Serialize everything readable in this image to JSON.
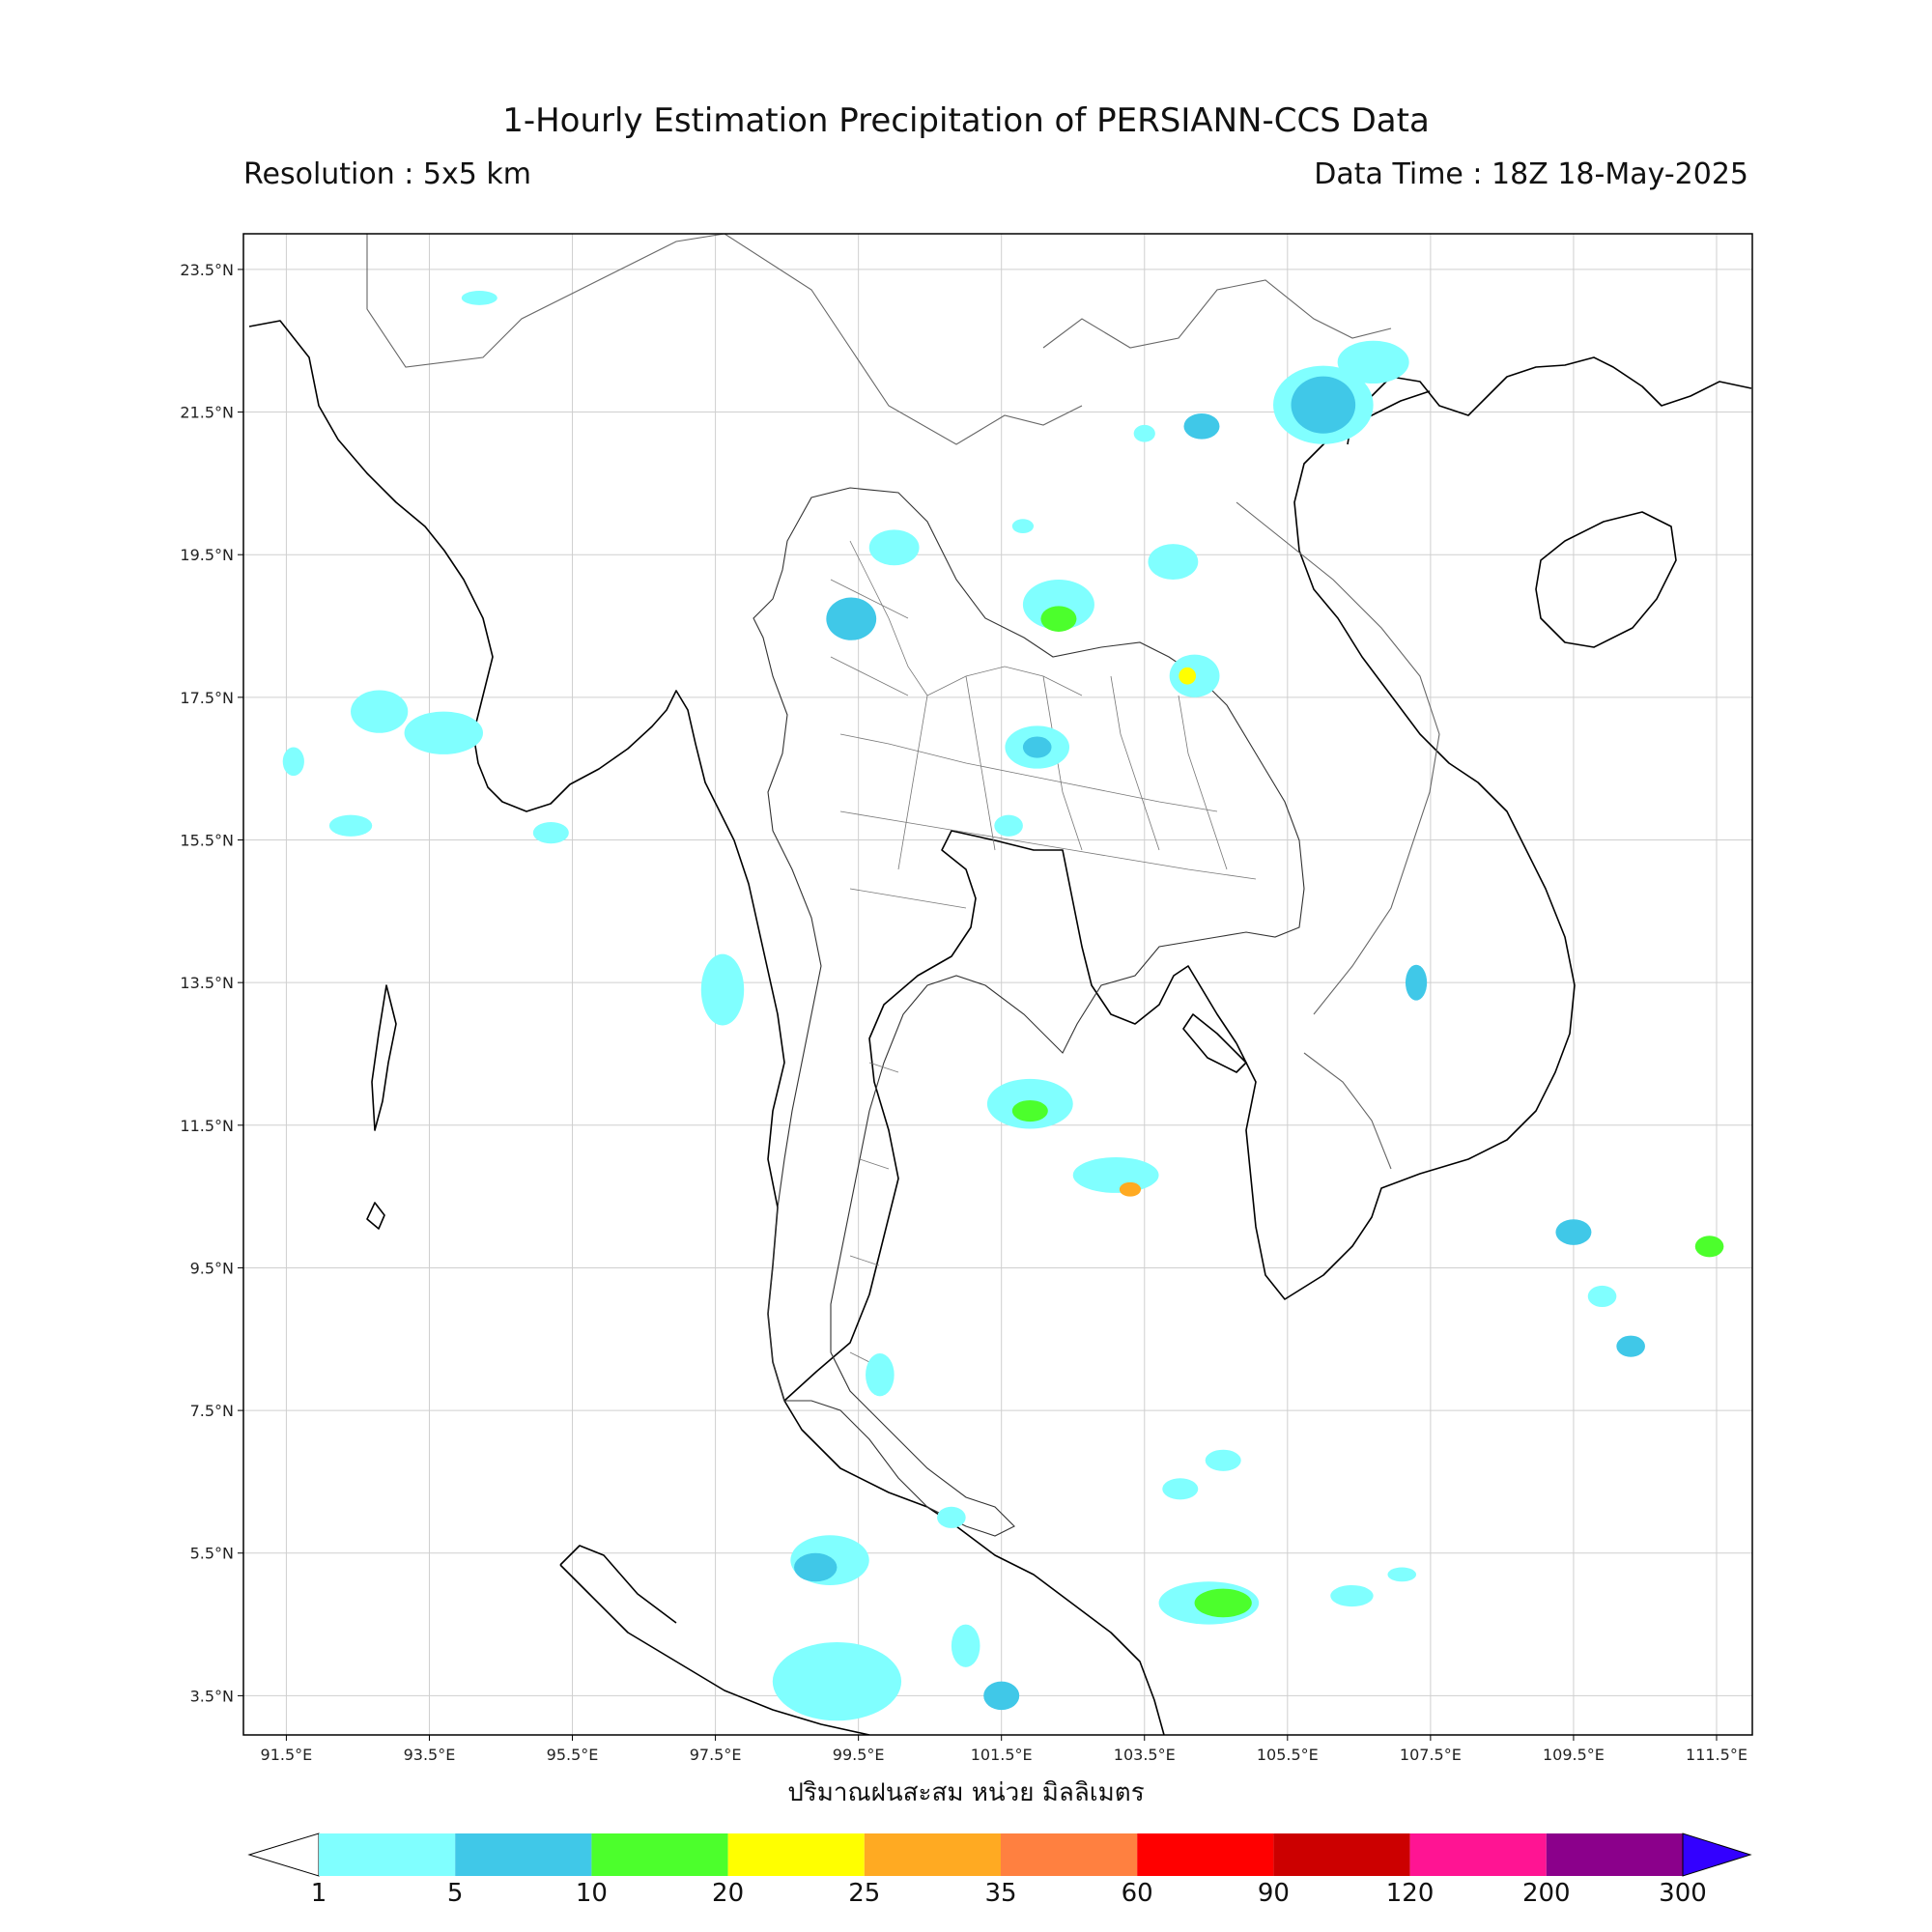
{
  "header": {
    "title": "1-Hourly Estimation Precipitation of PERSIANN-CCS Data",
    "resolution": "Resolution : 5x5 km",
    "data_time": "Data Time : 18Z 18-May-2025"
  },
  "map": {
    "extent": {
      "lon_min": 90.9,
      "lon_max": 112.0,
      "lat_min": 2.95,
      "lat_max": 24.0
    },
    "lat_ticks": [
      {
        "value": 23.5,
        "label": "23.5°N"
      },
      {
        "value": 21.5,
        "label": "21.5°N"
      },
      {
        "value": 19.5,
        "label": "19.5°N"
      },
      {
        "value": 17.5,
        "label": "17.5°N"
      },
      {
        "value": 15.5,
        "label": "15.5°N"
      },
      {
        "value": 13.5,
        "label": "13.5°N"
      },
      {
        "value": 11.5,
        "label": "11.5°N"
      },
      {
        "value": 9.5,
        "label": "9.5°N"
      },
      {
        "value": 7.5,
        "label": "7.5°N"
      },
      {
        "value": 5.5,
        "label": "5.5°N"
      },
      {
        "value": 3.5,
        "label": "3.5°N"
      }
    ],
    "lon_ticks": [
      {
        "value": 91.5,
        "label": "91.5°E"
      },
      {
        "value": 93.5,
        "label": "93.5°E"
      },
      {
        "value": 95.5,
        "label": "95.5°E"
      },
      {
        "value": 97.5,
        "label": "97.5°E"
      },
      {
        "value": 99.5,
        "label": "99.5°E"
      },
      {
        "value": 101.5,
        "label": "101.5°E"
      },
      {
        "value": 103.5,
        "label": "103.5°E"
      },
      {
        "value": 105.5,
        "label": "105.5°E"
      },
      {
        "value": 107.5,
        "label": "107.5°E"
      },
      {
        "value": 109.5,
        "label": "109.5°E"
      },
      {
        "value": 111.5,
        "label": "111.5°E"
      }
    ],
    "xlabel": "ปริมาณฝนสะสม หน่วย มิลลิเมตร",
    "grid": true
  },
  "precip_cells": [
    {
      "lon": 106.0,
      "lat": 21.6,
      "rx": 0.7,
      "ry": 0.55,
      "level": 1
    },
    {
      "lon": 106.0,
      "lat": 21.6,
      "rx": 0.45,
      "ry": 0.4,
      "level": 2
    },
    {
      "lon": 106.7,
      "lat": 22.2,
      "rx": 0.5,
      "ry": 0.3,
      "level": 1
    },
    {
      "lon": 102.3,
      "lat": 18.8,
      "rx": 0.5,
      "ry": 0.35,
      "level": 1
    },
    {
      "lon": 102.3,
      "lat": 18.6,
      "rx": 0.25,
      "ry": 0.18,
      "level": 3
    },
    {
      "lon": 103.9,
      "lat": 19.4,
      "rx": 0.35,
      "ry": 0.25,
      "level": 1
    },
    {
      "lon": 104.2,
      "lat": 17.8,
      "rx": 0.35,
      "ry": 0.3,
      "level": 1
    },
    {
      "lon": 104.1,
      "lat": 17.8,
      "rx": 0.12,
      "ry": 0.12,
      "level": 4
    },
    {
      "lon": 100.0,
      "lat": 19.6,
      "rx": 0.35,
      "ry": 0.25,
      "level": 1
    },
    {
      "lon": 99.4,
      "lat": 18.6,
      "rx": 0.35,
      "ry": 0.3,
      "level": 2
    },
    {
      "lon": 102.0,
      "lat": 16.8,
      "rx": 0.45,
      "ry": 0.3,
      "level": 1
    },
    {
      "lon": 102.0,
      "lat": 16.8,
      "rx": 0.2,
      "ry": 0.15,
      "level": 2
    },
    {
      "lon": 101.6,
      "lat": 15.7,
      "rx": 0.2,
      "ry": 0.15,
      "level": 1
    },
    {
      "lon": 101.9,
      "lat": 11.8,
      "rx": 0.6,
      "ry": 0.35,
      "level": 1
    },
    {
      "lon": 101.9,
      "lat": 11.7,
      "rx": 0.25,
      "ry": 0.15,
      "level": 3
    },
    {
      "lon": 103.1,
      "lat": 10.8,
      "rx": 0.6,
      "ry": 0.25,
      "level": 1
    },
    {
      "lon": 103.3,
      "lat": 10.6,
      "rx": 0.15,
      "ry": 0.1,
      "level": 5
    },
    {
      "lon": 104.4,
      "lat": 4.8,
      "rx": 0.7,
      "ry": 0.3,
      "level": 1
    },
    {
      "lon": 104.6,
      "lat": 4.8,
      "rx": 0.4,
      "ry": 0.2,
      "level": 3
    },
    {
      "lon": 99.1,
      "lat": 5.4,
      "rx": 0.55,
      "ry": 0.35,
      "level": 1
    },
    {
      "lon": 98.9,
      "lat": 5.3,
      "rx": 0.3,
      "ry": 0.2,
      "level": 2
    },
    {
      "lon": 99.2,
      "lat": 3.7,
      "rx": 0.9,
      "ry": 0.55,
      "level": 1
    },
    {
      "lon": 97.6,
      "lat": 13.4,
      "rx": 0.3,
      "ry": 0.5,
      "level": 1
    },
    {
      "lon": 92.8,
      "lat": 17.3,
      "rx": 0.4,
      "ry": 0.3,
      "level": 1
    },
    {
      "lon": 93.7,
      "lat": 17.0,
      "rx": 0.55,
      "ry": 0.3,
      "level": 1
    },
    {
      "lon": 91.6,
      "lat": 16.6,
      "rx": 0.15,
      "ry": 0.2,
      "level": 1
    },
    {
      "lon": 109.5,
      "lat": 10.0,
      "rx": 0.25,
      "ry": 0.18,
      "level": 2
    },
    {
      "lon": 111.4,
      "lat": 9.8,
      "rx": 0.2,
      "ry": 0.15,
      "level": 3
    },
    {
      "lon": 110.3,
      "lat": 8.4,
      "rx": 0.2,
      "ry": 0.15,
      "level": 2
    },
    {
      "lon": 109.9,
      "lat": 9.1,
      "rx": 0.2,
      "ry": 0.15,
      "level": 1
    },
    {
      "lon": 107.3,
      "lat": 13.5,
      "rx": 0.15,
      "ry": 0.25,
      "level": 2
    },
    {
      "lon": 101.5,
      "lat": 3.5,
      "rx": 0.25,
      "ry": 0.2,
      "level": 2
    },
    {
      "lon": 101.0,
      "lat": 4.2,
      "rx": 0.2,
      "ry": 0.3,
      "level": 1
    },
    {
      "lon": 104.3,
      "lat": 21.3,
      "rx": 0.25,
      "ry": 0.18,
      "level": 2
    },
    {
      "lon": 103.5,
      "lat": 21.2,
      "rx": 0.15,
      "ry": 0.12,
      "level": 1
    },
    {
      "lon": 94.2,
      "lat": 23.1,
      "rx": 0.25,
      "ry": 0.1,
      "level": 1
    },
    {
      "lon": 104.0,
      "lat": 6.4,
      "rx": 0.25,
      "ry": 0.15,
      "level": 1
    },
    {
      "lon": 104.6,
      "lat": 6.8,
      "rx": 0.25,
      "ry": 0.15,
      "level": 1
    },
    {
      "lon": 106.4,
      "lat": 4.9,
      "rx": 0.3,
      "ry": 0.15,
      "level": 1
    },
    {
      "lon": 107.1,
      "lat": 5.2,
      "rx": 0.2,
      "ry": 0.1,
      "level": 1
    },
    {
      "lon": 95.2,
      "lat": 15.6,
      "rx": 0.25,
      "ry": 0.15,
      "level": 1
    },
    {
      "lon": 92.4,
      "lat": 15.7,
      "rx": 0.3,
      "ry": 0.15,
      "level": 1
    },
    {
      "lon": 101.8,
      "lat": 19.9,
      "rx": 0.15,
      "ry": 0.1,
      "level": 1
    },
    {
      "lon": 100.8,
      "lat": 6.0,
      "rx": 0.2,
      "ry": 0.15,
      "level": 1
    },
    {
      "lon": 99.8,
      "lat": 8.0,
      "rx": 0.2,
      "ry": 0.3,
      "level": 1
    }
  ],
  "colorbar": {
    "ticks": [
      "1",
      "5",
      "10",
      "20",
      "25",
      "35",
      "60",
      "90",
      "120",
      "200",
      "300"
    ],
    "colors": [
      "#80ffff",
      "#40c8e8",
      "#4cff2c",
      "#ffff00",
      "#ffaa22",
      "#ff8040",
      "#ff0000",
      "#cc0000",
      "#ff1493",
      "#8b008b"
    ],
    "under_color": "#ffffff",
    "over_color": "#3300ff"
  }
}
